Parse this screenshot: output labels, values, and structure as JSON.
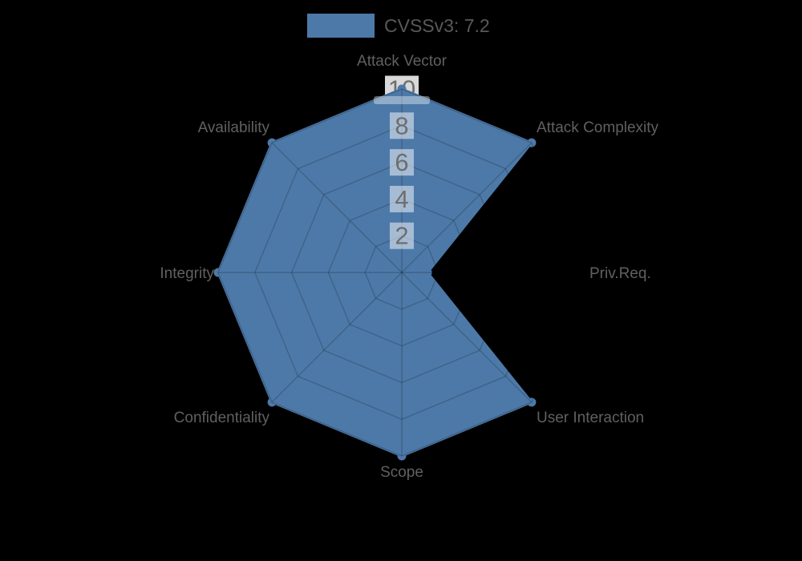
{
  "colors": {
    "background": "#000000",
    "series_fill": "#4d79a8",
    "series_stroke": "#4d79a8",
    "grid_line": "rgba(0,0,0,0.18)",
    "axis_label": "#606060",
    "tick_label": "#6e6e6e",
    "tick_box_bg": "rgba(255,255,255,0.5)",
    "tick_box_bg_top": "rgba(255,255,255,0.85)",
    "tick_band_bg": "rgba(255,255,255,0.38)",
    "legend_text": "#58595b"
  },
  "chart_data": {
    "type": "radar",
    "legend": {
      "label": "CVSSv3: 7.2",
      "swatch_color": "#4d79a8",
      "position": "top-center"
    },
    "axes": [
      "Attack Vector",
      "Attack Complexity",
      "Priv.Req.",
      "User Interaction",
      "Scope",
      "Confidentiality",
      "Integrity",
      "Availability"
    ],
    "series": [
      {
        "name": "CVSSv3: 7.2",
        "values": [
          10,
          10,
          1.4,
          10,
          10,
          10,
          10,
          10
        ],
        "color": "#4d79a8"
      }
    ],
    "radial_ticks": [
      2,
      4,
      6,
      8,
      10
    ],
    "range": [
      0,
      10
    ],
    "grid": true,
    "grid_shape": "octagon"
  }
}
